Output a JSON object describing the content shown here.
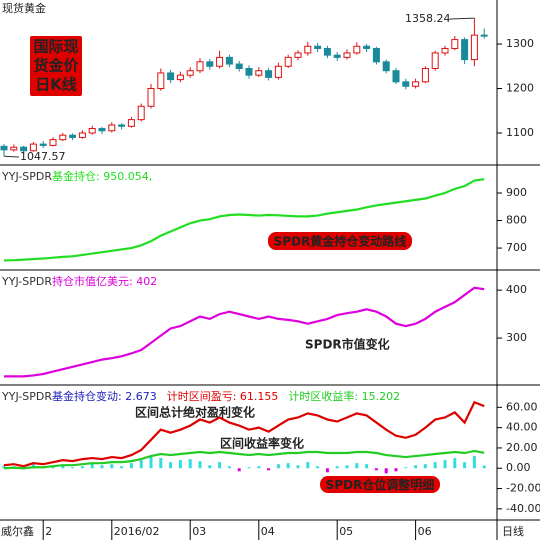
{
  "x_axis": {
    "left_label": "威尔鑫",
    "right_label": "日线",
    "categories": [
      null,
      null,
      null,
      null,
      "2",
      null,
      null,
      null,
      null,
      null,
      null,
      "2016/02",
      null,
      null,
      null,
      null,
      null,
      null,
      null,
      "03",
      null,
      null,
      null,
      null,
      null,
      null,
      "04",
      null,
      null,
      null,
      null,
      null,
      null,
      null,
      "05",
      null,
      null,
      null,
      null,
      null,
      null,
      null,
      "06",
      null,
      null,
      null,
      null,
      null,
      null,
      null
    ]
  },
  "chart_data": [
    {
      "type": "candlestick",
      "title": "现货黄金",
      "up_color": "#e01010",
      "down_color": "#1a8a9a",
      "ylim": [
        1028,
        1399
      ],
      "yticks": [
        1100,
        1200,
        1300
      ],
      "max_label": 1358.24,
      "min_label": 1047.57,
      "open": [
        1070,
        1062,
        1068,
        1060,
        1075,
        1072,
        1085,
        1095,
        1090,
        1100,
        1110,
        1105,
        1118,
        1115,
        1130,
        1160,
        1200,
        1235,
        1220,
        1230,
        1240,
        1260,
        1250,
        1270,
        1255,
        1245,
        1230,
        1240,
        1225,
        1250,
        1270,
        1280,
        1295,
        1290,
        1275,
        1270,
        1280,
        1295,
        1290,
        1260,
        1240,
        1215,
        1205,
        1215,
        1245,
        1280,
        1290,
        1310,
        1265,
        1320
      ],
      "high": [
        1075,
        1074,
        1071,
        1080,
        1082,
        1090,
        1100,
        1099,
        1106,
        1116,
        1114,
        1124,
        1122,
        1136,
        1166,
        1210,
        1245,
        1242,
        1238,
        1248,
        1268,
        1266,
        1285,
        1276,
        1262,
        1252,
        1248,
        1246,
        1258,
        1276,
        1286,
        1305,
        1302,
        1296,
        1282,
        1288,
        1304,
        1300,
        1294,
        1265,
        1246,
        1222,
        1222,
        1250,
        1285,
        1296,
        1318,
        1315,
        1358.24,
        1335
      ],
      "low": [
        1047.57,
        1058,
        1055,
        1058,
        1066,
        1070,
        1082,
        1084,
        1087,
        1096,
        1098,
        1101,
        1108,
        1112,
        1126,
        1155,
        1195,
        1212,
        1214,
        1224,
        1235,
        1242,
        1245,
        1248,
        1238,
        1222,
        1226,
        1218,
        1220,
        1246,
        1264,
        1274,
        1282,
        1268,
        1262,
        1265,
        1276,
        1282,
        1254,
        1234,
        1210,
        1198,
        1200,
        1212,
        1240,
        1274,
        1286,
        1255,
        1250,
        1312
      ],
      "close": [
        1062,
        1068,
        1060,
        1075,
        1072,
        1085,
        1095,
        1090,
        1100,
        1110,
        1105,
        1118,
        1115,
        1130,
        1160,
        1200,
        1235,
        1220,
        1230,
        1240,
        1260,
        1250,
        1270,
        1255,
        1245,
        1230,
        1240,
        1225,
        1250,
        1270,
        1280,
        1295,
        1290,
        1275,
        1270,
        1280,
        1295,
        1290,
        1260,
        1240,
        1215,
        1205,
        1215,
        1245,
        1280,
        1290,
        1310,
        1265,
        1320,
        1318
      ],
      "annotations": [
        {
          "lines": [
            "国际现",
            "货金价",
            "日K线"
          ],
          "color": "#ffff00",
          "box": "#e00000"
        }
      ]
    },
    {
      "type": "line",
      "source": "YYJ-SPDR",
      "series": [
        {
          "label": "基金持仓: 950.054,",
          "color": "#22dd22",
          "values": [
            655,
            656,
            658,
            660,
            662,
            665,
            668,
            670,
            675,
            680,
            685,
            690,
            695,
            700,
            710,
            725,
            745,
            760,
            775,
            790,
            800,
            805,
            815,
            820,
            822,
            820,
            818,
            820,
            819,
            817,
            815,
            815,
            818,
            825,
            830,
            835,
            840,
            848,
            855,
            860,
            865,
            870,
            875,
            880,
            890,
            900,
            915,
            925,
            945,
            950.054
          ]
        }
      ],
      "ylim": [
        624,
        998
      ],
      "yticks": [
        700,
        800,
        900
      ],
      "annotations": [
        {
          "text": "SPDR黄金持仓变动路线",
          "color": "#ffff00",
          "box": "#e00000"
        }
      ]
    },
    {
      "type": "line",
      "source": "YYJ-SPDR",
      "series": [
        {
          "label": "持仓市值亿美元: 402",
          "color": "#dd00dd",
          "values": [
            220,
            220,
            220,
            222,
            225,
            230,
            235,
            240,
            245,
            250,
            255,
            258,
            262,
            268,
            275,
            290,
            305,
            320,
            325,
            335,
            345,
            340,
            350,
            355,
            350,
            345,
            340,
            345,
            340,
            338,
            335,
            330,
            335,
            340,
            348,
            352,
            355,
            360,
            355,
            345,
            330,
            325,
            330,
            340,
            355,
            365,
            375,
            390,
            405,
            402
          ]
        }
      ],
      "ylim": [
        202,
        440
      ],
      "yticks": [
        300,
        400
      ],
      "annotations": [
        {
          "text": "SPDR市值变化",
          "color": "#dd00dd"
        }
      ]
    },
    {
      "type": "combo",
      "source": "YYJ-SPDR",
      "series": [
        {
          "label": "基金持仓变动: 2.673",
          "color": "#2020c0",
          "kind": "bar",
          "pos_color": "#33dddd",
          "neg_color": "#dd00dd",
          "values": [
            3,
            2,
            -1,
            4,
            1,
            2,
            3,
            1,
            2,
            5,
            3,
            4,
            2,
            5,
            8,
            12,
            10,
            6,
            8,
            9,
            7,
            3,
            6,
            2,
            -3,
            1,
            2,
            -2,
            4,
            5,
            3,
            6,
            2,
            -4,
            2,
            3,
            5,
            4,
            -2,
            -5,
            -3,
            1,
            3,
            4,
            6,
            8,
            10,
            6,
            12,
            2.673
          ]
        },
        {
          "label": "计时区间盈亏: 61.155",
          "color": "#dd0000",
          "kind": "line",
          "values": [
            3,
            4,
            2,
            5,
            4,
            6,
            8,
            7,
            9,
            10,
            9,
            11,
            10,
            13,
            18,
            28,
            38,
            35,
            38,
            42,
            48,
            45,
            50,
            45,
            42,
            38,
            40,
            36,
            42,
            48,
            50,
            54,
            52,
            48,
            46,
            50,
            54,
            52,
            45,
            38,
            32,
            30,
            33,
            40,
            48,
            50,
            55,
            45,
            65,
            61.155
          ]
        },
        {
          "label": "计时区收益率: 15.202",
          "color": "#22cc22",
          "kind": "line",
          "values": [
            0,
            0.5,
            0,
            1,
            1,
            2,
            3,
            3,
            4,
            5,
            5,
            6,
            6,
            7,
            9,
            12,
            14,
            13,
            14,
            15,
            16,
            15,
            16,
            15,
            14,
            13,
            14,
            13,
            14,
            15,
            15,
            16,
            16,
            15,
            15,
            15,
            16,
            16,
            15,
            13,
            12,
            11,
            12,
            13,
            14,
            15,
            16,
            15,
            17,
            15.202
          ]
        }
      ],
      "ylim": [
        -49,
        81
      ],
      "yticks": [
        {
          "value": 60,
          "label": "60.00"
        },
        {
          "value": 40,
          "label": "40.00"
        },
        {
          "value": 20,
          "label": "20.00"
        },
        {
          "value": 0,
          "label": "0.00"
        },
        {
          "value": -20,
          "label": "-20.00"
        },
        {
          "value": -40,
          "label": "-40.00"
        }
      ],
      "annotations": [
        {
          "text": "区间总计绝对盈利变化",
          "color": "#dd0000"
        },
        {
          "text": "区间收益率变化",
          "color": "#22bb22"
        },
        {
          "text": "SPDR仓位调整明细",
          "color": "#ffff00",
          "box": "#e00000"
        }
      ]
    }
  ]
}
